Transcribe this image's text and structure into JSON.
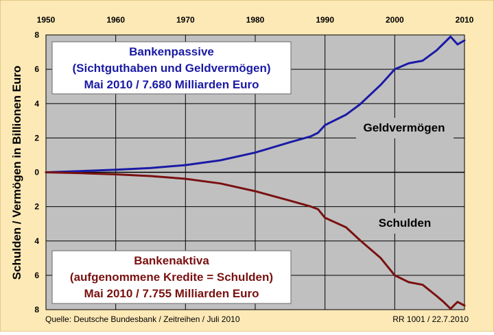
{
  "chart_data": {
    "type": "line",
    "ylabel": "Schulden / Vermögen in Billionen Euro",
    "x_ticks": [
      "1950",
      "1960",
      "1970",
      "1980",
      "1990",
      "2000",
      "2010"
    ],
    "y_tick_labels": [
      "8",
      "6",
      "4",
      "2",
      "0",
      "2",
      "4",
      "6",
      "8"
    ],
    "xlim": [
      1950,
      2010
    ],
    "ylim_upper": [
      0,
      8
    ],
    "ylim_lower": [
      0,
      8
    ],
    "grid": true,
    "series": [
      {
        "name": "Geldvermögen",
        "direction": "up",
        "color": "#1a1aa6",
        "x": [
          1950,
          1955,
          1960,
          1965,
          1970,
          1975,
          1980,
          1985,
          1988,
          1989,
          1990,
          1993,
          1995,
          1998,
          2000,
          2002,
          2004,
          2006,
          2007,
          2008,
          2009,
          2010
        ],
        "values": [
          0.0,
          0.07,
          0.15,
          0.25,
          0.42,
          0.7,
          1.15,
          1.75,
          2.1,
          2.3,
          2.75,
          3.35,
          3.95,
          5.1,
          6.0,
          6.35,
          6.5,
          7.1,
          7.5,
          7.9,
          7.45,
          7.68
        ]
      },
      {
        "name": "Schulden",
        "direction": "down",
        "color": "#7a1010",
        "x": [
          1950,
          1955,
          1960,
          1965,
          1970,
          1975,
          1980,
          1985,
          1988,
          1989,
          1990,
          1993,
          1995,
          1998,
          2000,
          2002,
          2004,
          2006,
          2007,
          2008,
          2009,
          2010
        ],
        "values": [
          0.0,
          0.05,
          0.12,
          0.22,
          0.38,
          0.65,
          1.1,
          1.65,
          2.0,
          2.15,
          2.65,
          3.2,
          3.95,
          5.0,
          6.0,
          6.4,
          6.55,
          7.2,
          7.55,
          7.95,
          7.55,
          7.76
        ]
      }
    ],
    "annotations": {
      "top_box": {
        "lines": [
          "Bankenpassive",
          "(Sichtguthaben und Geldvermögen)",
          "Mai 2010 / 7.680 Milliarden Euro"
        ],
        "color": "#1a1aa6"
      },
      "bottom_box": {
        "lines": [
          "Bankenaktiva",
          "(aufgenommene Kredite = Schulden)",
          "Mai 2010 / 7.755 Milliarden Euro"
        ],
        "color": "#7a1010"
      },
      "label_upper": "Geldvermögen",
      "label_lower": "Schulden"
    },
    "footer_left": "Quelle: Deutsche Bundesbank / Zeitreihen / Juli 2010",
    "footer_right": "RR 1001 / 22.7.2010"
  },
  "colors": {
    "outer_background": "#fde9b6",
    "plot_background": "#c0c0c0",
    "grid": "#000000",
    "label_text": "#000000"
  }
}
